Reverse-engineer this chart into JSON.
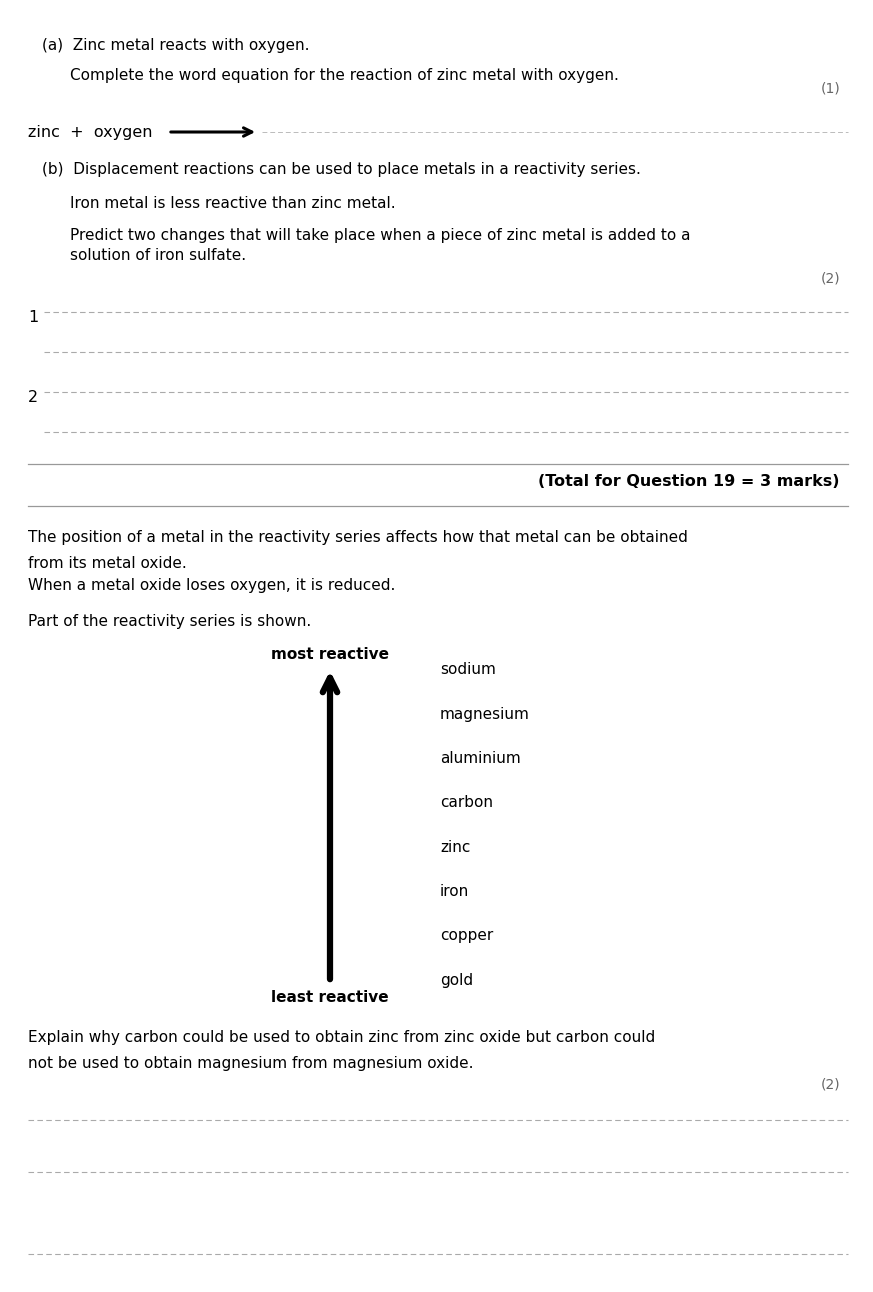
{
  "bg_color": "#ffffff",
  "text_color": "#000000",
  "gray_text": "#666666",
  "page_width": 8.73,
  "page_height": 12.92,
  "section_a_title": "(a)  Zinc metal reacts with oxygen.",
  "section_a_sub": "Complete the word equation for the reaction of zinc metal with oxygen.",
  "marks_1": "(1)",
  "equation_label": "zinc  +  oxygen",
  "section_b_title": "(b)  Displacement reactions can be used to place metals in a reactivity series.",
  "section_b_line1": "Iron metal is less reactive than zinc metal.",
  "section_b_line2": "Predict two changes that will take place when a piece of zinc metal is added to a",
  "section_b_line3": "solution of iron sulfate.",
  "marks_2": "(2)",
  "answer_label_1": "1",
  "answer_label_2": "2",
  "total_marks": "(Total for Question 19 = 3 marks)",
  "intro_line1": "The position of a metal in the reactivity series affects how that metal can be obtained",
  "intro_line2": "from its metal oxide.",
  "intro_line3": "When a metal oxide loses oxygen, it is reduced.",
  "intro_line4": "Part of the reactivity series is shown.",
  "most_reactive": "most reactive",
  "least_reactive": "least reactive",
  "series": [
    "sodium",
    "magnesium",
    "aluminium",
    "carbon",
    "zinc",
    "iron",
    "copper",
    "gold"
  ],
  "explain_line1": "Explain why carbon could be used to obtain zinc from zinc oxide but carbon could",
  "explain_line2": "not be used to obtain magnesium from magnesium oxide.",
  "marks_3": "(2)"
}
